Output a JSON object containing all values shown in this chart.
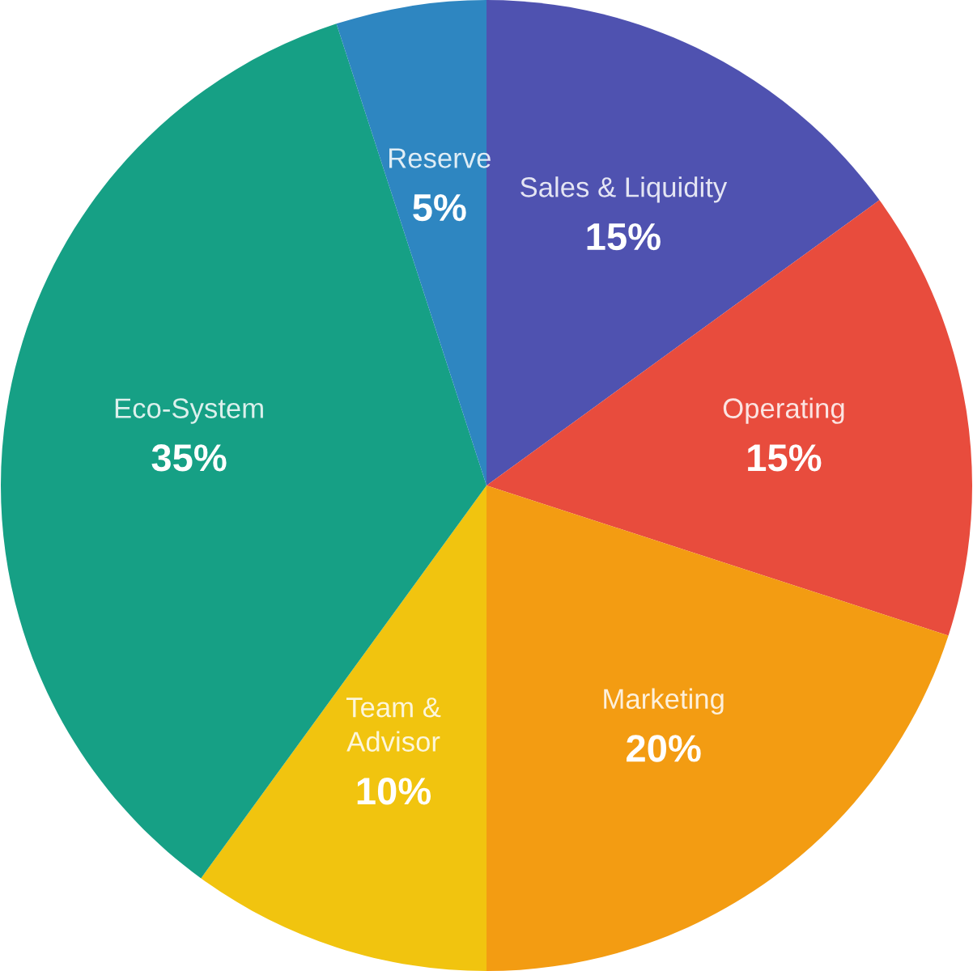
{
  "chart_data": {
    "type": "pie",
    "categories": [
      "Sales & Liquidity",
      "Operating",
      "Marketing",
      "Team &\nAdvisor",
      "Eco-System",
      "Reserve"
    ],
    "values": [
      15,
      15,
      20,
      10,
      35,
      5
    ],
    "value_labels": [
      "15%",
      "15%",
      "20%",
      "10%",
      "35%",
      "5%"
    ],
    "colors": [
      "#4f52b0",
      "#e84c3d",
      "#f39c12",
      "#f1c40f",
      "#16a085",
      "#2e86c1"
    ]
  }
}
